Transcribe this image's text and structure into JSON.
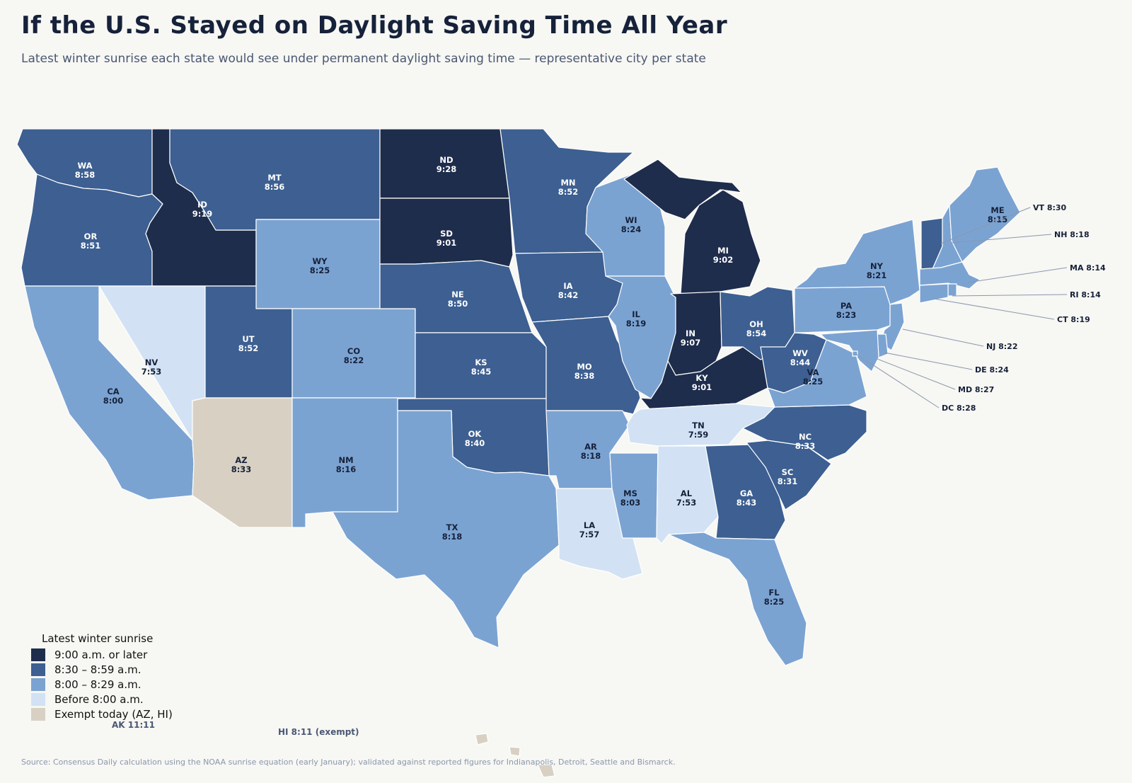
{
  "title": "If the U.S. Stayed on Daylight Saving Time All Year",
  "subtitle": "Latest winter sunrise each state would see under permanent daylight saving time — representative city per state",
  "legend": {
    "title": "Latest winter sunrise",
    "items": [
      {
        "label": "9:00 a.m. or later",
        "color": "#1f2d4c"
      },
      {
        "label": "8:30 – 8:59 a.m.",
        "color": "#3d5f91"
      },
      {
        "label": "8:00 – 8:29 a.m.",
        "color": "#7ba3d2"
      },
      {
        "label": "Before 8:00 a.m.",
        "color": "#d2e2f4"
      },
      {
        "label": "Exempt today (AZ, HI)",
        "color": "#d8d1c3"
      }
    ]
  },
  "states": [
    {
      "abbr": "WA",
      "time": "8:58",
      "class": 1
    },
    {
      "abbr": "OR",
      "time": "8:51",
      "class": 1
    },
    {
      "abbr": "CA",
      "time": "8:00",
      "class": 2
    },
    {
      "abbr": "ID",
      "time": "9:19",
      "class": 0
    },
    {
      "abbr": "NV",
      "time": "7:53",
      "class": 3
    },
    {
      "abbr": "MT",
      "time": "8:56",
      "class": 1
    },
    {
      "abbr": "WY",
      "time": "8:25",
      "class": 2
    },
    {
      "abbr": "UT",
      "time": "8:52",
      "class": 1
    },
    {
      "abbr": "AZ",
      "time": "8:33",
      "class": 4
    },
    {
      "abbr": "CO",
      "time": "8:22",
      "class": 2
    },
    {
      "abbr": "NM",
      "time": "8:16",
      "class": 2
    },
    {
      "abbr": "ND",
      "time": "9:28",
      "class": 0
    },
    {
      "abbr": "SD",
      "time": "9:01",
      "class": 0
    },
    {
      "abbr": "NE",
      "time": "8:50",
      "class": 1
    },
    {
      "abbr": "KS",
      "time": "8:45",
      "class": 1
    },
    {
      "abbr": "OK",
      "time": "8:40",
      "class": 1
    },
    {
      "abbr": "TX",
      "time": "8:18",
      "class": 2
    },
    {
      "abbr": "MN",
      "time": "8:52",
      "class": 1
    },
    {
      "abbr": "IA",
      "time": "8:42",
      "class": 1
    },
    {
      "abbr": "MO",
      "time": "8:38",
      "class": 1
    },
    {
      "abbr": "AR",
      "time": "8:18",
      "class": 2
    },
    {
      "abbr": "LA",
      "time": "7:57",
      "class": 3
    },
    {
      "abbr": "WI",
      "time": "8:24",
      "class": 2
    },
    {
      "abbr": "IL",
      "time": "8:19",
      "class": 2
    },
    {
      "abbr": "MS",
      "time": "8:03",
      "class": 2
    },
    {
      "abbr": "MI",
      "time": "9:02",
      "class": 0
    },
    {
      "abbr": "IN",
      "time": "9:07",
      "class": 0
    },
    {
      "abbr": "KY",
      "time": "9:01",
      "class": 0
    },
    {
      "abbr": "TN",
      "time": "7:59",
      "class": 3
    },
    {
      "abbr": "AL",
      "time": "7:53",
      "class": 3
    },
    {
      "abbr": "OH",
      "time": "8:54",
      "class": 1
    },
    {
      "abbr": "GA",
      "time": "8:43",
      "class": 1
    },
    {
      "abbr": "FL",
      "time": "8:25",
      "class": 2
    },
    {
      "abbr": "SC",
      "time": "8:31",
      "class": 1
    },
    {
      "abbr": "NC",
      "time": "8:33",
      "class": 1
    },
    {
      "abbr": "WV",
      "time": "8:44",
      "class": 1
    },
    {
      "abbr": "VA",
      "time": "8:25",
      "class": 2
    },
    {
      "abbr": "PA",
      "time": "8:23",
      "class": 2
    },
    {
      "abbr": "NY",
      "time": "8:21",
      "class": 2
    },
    {
      "abbr": "ME",
      "time": "8:15",
      "class": 2
    },
    {
      "abbr": "VT",
      "time": "8:30",
      "class": 1
    },
    {
      "abbr": "NH",
      "time": "8:18",
      "class": 2
    },
    {
      "abbr": "MA",
      "time": "8:14",
      "class": 2
    },
    {
      "abbr": "RI",
      "time": "8:14",
      "class": 2
    },
    {
      "abbr": "CT",
      "time": "8:19",
      "class": 2
    },
    {
      "abbr": "NJ",
      "time": "8:22",
      "class": 2
    },
    {
      "abbr": "DE",
      "time": "8:24",
      "class": 2
    },
    {
      "abbr": "MD",
      "time": "8:27",
      "class": 2
    },
    {
      "abbr": "DC",
      "time": "8:28",
      "class": 2
    }
  ],
  "callouts": {
    "VT": "VT 8:30",
    "NH": "NH 8:18",
    "MA": "MA 8:14",
    "RI": "RI 8:14",
    "CT": "CT 8:19",
    "NJ": "NJ 8:22",
    "DE": "DE 8:24",
    "MD": "MD 8:27",
    "DC": "DC 8:28"
  },
  "ak_note": "AK  11:11",
  "hi_note": "HI  8:11 (exempt)",
  "source": "Source: Consensus Daily calculation using the NOAA sunrise equation (early January); validated against reported figures for Indianapolis, Detroit, Seattle and Bismarck."
}
